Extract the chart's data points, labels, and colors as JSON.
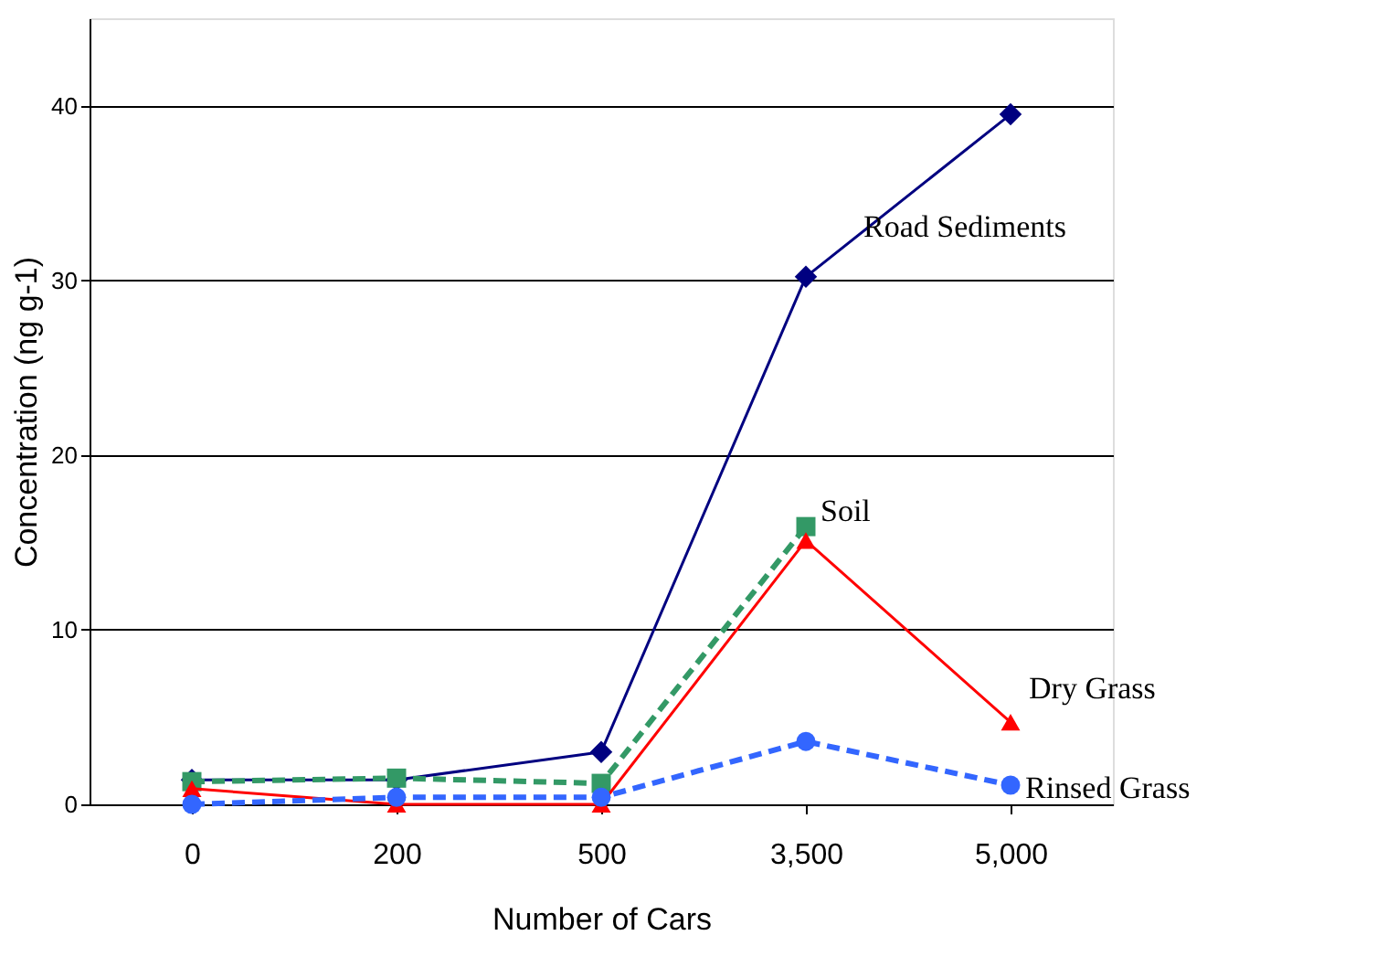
{
  "chart_data": {
    "type": "line",
    "xlabel": "Number of Cars",
    "ylabel": "Concentration (ng g-1)",
    "categories": [
      "0",
      "200",
      "500",
      "3,500",
      "5,000"
    ],
    "ylim": [
      0,
      45
    ],
    "yticks": [
      0,
      10,
      20,
      30,
      40
    ],
    "grid": "y",
    "series": [
      {
        "name": "Road Sediments",
        "color": "#000080",
        "values": [
          1.4,
          1.4,
          3.0,
          30.2,
          39.5
        ],
        "marker": "diamond",
        "line_style": "solid"
      },
      {
        "name": "Soil",
        "color": "#339966",
        "values": [
          1.3,
          1.5,
          1.2,
          15.9,
          null
        ],
        "marker": "square",
        "line_style": "dashed"
      },
      {
        "name": "Dry Grass",
        "color": "#ff0000",
        "values": [
          0.9,
          0,
          0,
          15.1,
          4.7
        ],
        "marker": "triangle",
        "line_style": "solid"
      },
      {
        "name": "Rinsed Grass",
        "color": "#3366ff",
        "values": [
          0,
          0.4,
          0.4,
          3.6,
          1.1
        ],
        "marker": "circle",
        "line_style": "dashed"
      }
    ]
  }
}
